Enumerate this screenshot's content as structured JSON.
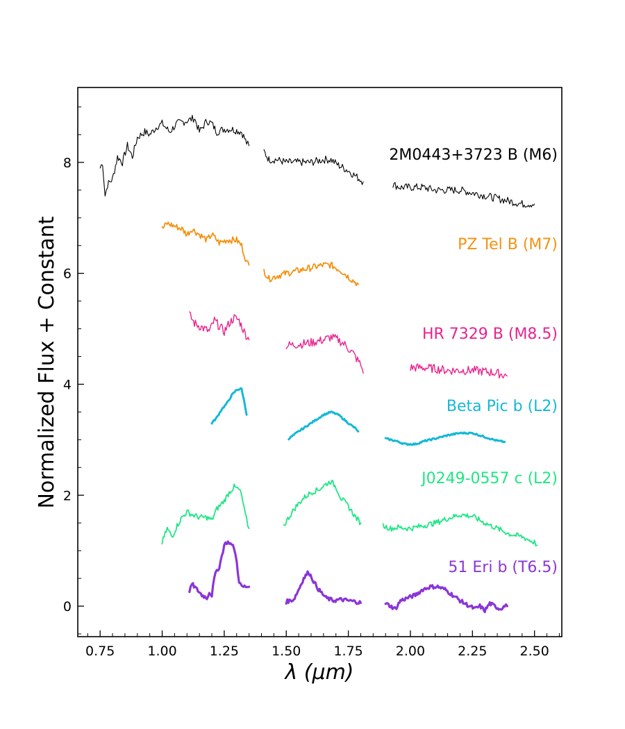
{
  "chart_data": {
    "type": "line",
    "title": "",
    "xlabel": "λ (μm)",
    "ylabel": "Normalized Flux + Constant",
    "xlim": [
      0.66,
      2.61
    ],
    "ylim": [
      -0.55,
      9.35
    ],
    "xticks": [
      0.75,
      1.0,
      1.25,
      1.5,
      1.75,
      2.0,
      2.25,
      2.5
    ],
    "xtick_labels": [
      "0.75",
      "1.00",
      "1.25",
      "1.50",
      "1.75",
      "2.00",
      "2.25",
      "2.50"
    ],
    "yticks": [
      0,
      2,
      4,
      6,
      8
    ],
    "ytick_labels": [
      "0",
      "2",
      "4",
      "6",
      "8"
    ],
    "grid": false,
    "legend": "none",
    "series": [
      {
        "name": "2M0443+3723 B (M6)",
        "color": "#000000",
        "width": 1.1,
        "noise": 0.07,
        "segments": [
          [
            [
              0.75,
              7.9
            ],
            [
              0.76,
              8.0
            ],
            [
              0.77,
              7.4
            ],
            [
              0.78,
              7.6
            ],
            [
              0.8,
              7.7
            ],
            [
              0.82,
              8.1
            ],
            [
              0.84,
              8.0
            ],
            [
              0.86,
              8.3
            ],
            [
              0.88,
              8.1
            ],
            [
              0.9,
              8.45
            ],
            [
              0.93,
              8.55
            ],
            [
              0.95,
              8.5
            ],
            [
              0.98,
              8.65
            ],
            [
              1.0,
              8.7
            ],
            [
              1.03,
              8.55
            ],
            [
              1.06,
              8.7
            ],
            [
              1.1,
              8.75
            ],
            [
              1.13,
              8.8
            ],
            [
              1.15,
              8.55
            ],
            [
              1.18,
              8.75
            ],
            [
              1.2,
              8.7
            ],
            [
              1.22,
              8.55
            ],
            [
              1.25,
              8.6
            ],
            [
              1.28,
              8.6
            ],
            [
              1.32,
              8.55
            ],
            [
              1.34,
              8.35
            ],
            [
              1.35,
              8.3
            ]
          ],
          [
            [
              1.41,
              8.2
            ],
            [
              1.43,
              8.05
            ],
            [
              1.46,
              8.05
            ],
            [
              1.5,
              8.0
            ],
            [
              1.55,
              8.0
            ],
            [
              1.6,
              8.0
            ],
            [
              1.65,
              8.05
            ],
            [
              1.68,
              8.05
            ],
            [
              1.71,
              7.95
            ],
            [
              1.75,
              7.85
            ],
            [
              1.78,
              7.75
            ],
            [
              1.81,
              7.65
            ]
          ],
          [
            [
              1.93,
              7.6
            ],
            [
              1.96,
              7.55
            ],
            [
              2.0,
              7.55
            ],
            [
              2.05,
              7.55
            ],
            [
              2.1,
              7.5
            ],
            [
              2.15,
              7.5
            ],
            [
              2.2,
              7.5
            ],
            [
              2.25,
              7.45
            ],
            [
              2.3,
              7.4
            ],
            [
              2.35,
              7.35
            ],
            [
              2.4,
              7.3
            ],
            [
              2.45,
              7.25
            ],
            [
              2.5,
              7.25
            ]
          ]
        ]
      },
      {
        "name": "PZ Tel B (M7)",
        "color": "#f39211",
        "width": 1.8,
        "noise": 0.06,
        "segments": [
          [
            [
              1.0,
              6.8
            ],
            [
              1.02,
              6.9
            ],
            [
              1.05,
              6.85
            ],
            [
              1.08,
              6.8
            ],
            [
              1.1,
              6.7
            ],
            [
              1.12,
              6.8
            ],
            [
              1.15,
              6.7
            ],
            [
              1.18,
              6.6
            ],
            [
              1.2,
              6.7
            ],
            [
              1.23,
              6.55
            ],
            [
              1.26,
              6.6
            ],
            [
              1.3,
              6.6
            ],
            [
              1.32,
              6.5
            ],
            [
              1.33,
              6.35
            ],
            [
              1.34,
              6.2
            ],
            [
              1.35,
              6.15
            ]
          ],
          [
            [
              1.41,
              6.05
            ],
            [
              1.43,
              5.9
            ],
            [
              1.46,
              5.95
            ],
            [
              1.5,
              6.0
            ],
            [
              1.55,
              6.05
            ],
            [
              1.6,
              6.1
            ],
            [
              1.65,
              6.15
            ],
            [
              1.68,
              6.15
            ],
            [
              1.72,
              6.05
            ],
            [
              1.76,
              5.9
            ],
            [
              1.79,
              5.8
            ]
          ]
        ]
      },
      {
        "name": "HR 7329 B (M8.5)",
        "color": "#e8238e",
        "width": 1.4,
        "noise": 0.08,
        "segments": [
          [
            [
              1.11,
              5.25
            ],
            [
              1.13,
              5.1
            ],
            [
              1.15,
              5.05
            ],
            [
              1.17,
              5.0
            ],
            [
              1.19,
              4.95
            ],
            [
              1.21,
              5.15
            ],
            [
              1.23,
              5.05
            ],
            [
              1.25,
              4.95
            ],
            [
              1.27,
              5.1
            ],
            [
              1.29,
              5.2
            ],
            [
              1.31,
              5.15
            ],
            [
              1.33,
              4.95
            ],
            [
              1.35,
              4.8
            ]
          ],
          [
            [
              1.5,
              4.7
            ],
            [
              1.55,
              4.72
            ],
            [
              1.6,
              4.75
            ],
            [
              1.65,
              4.8
            ],
            [
              1.68,
              4.85
            ],
            [
              1.71,
              4.8
            ],
            [
              1.74,
              4.7
            ],
            [
              1.77,
              4.55
            ],
            [
              1.8,
              4.35
            ],
            [
              1.81,
              4.2
            ]
          ],
          [
            [
              2.0,
              4.3
            ],
            [
              2.05,
              4.3
            ],
            [
              2.1,
              4.28
            ],
            [
              2.15,
              4.25
            ],
            [
              2.2,
              4.25
            ],
            [
              2.25,
              4.25
            ],
            [
              2.3,
              4.23
            ],
            [
              2.35,
              4.2
            ],
            [
              2.39,
              4.15
            ]
          ]
        ]
      },
      {
        "name": "Beta Pic b (L2)",
        "color": "#14b8d6",
        "width": 3.0,
        "noise": 0.015,
        "segments": [
          [
            [
              1.2,
              3.3
            ],
            [
              1.22,
              3.4
            ],
            [
              1.24,
              3.55
            ],
            [
              1.26,
              3.65
            ],
            [
              1.28,
              3.8
            ],
            [
              1.3,
              3.9
            ],
            [
              1.32,
              3.92
            ],
            [
              1.33,
              3.7
            ],
            [
              1.34,
              3.45
            ]
          ],
          [
            [
              1.51,
              3.02
            ],
            [
              1.55,
              3.15
            ],
            [
              1.6,
              3.3
            ],
            [
              1.65,
              3.45
            ],
            [
              1.68,
              3.5
            ],
            [
              1.71,
              3.45
            ],
            [
              1.75,
              3.3
            ],
            [
              1.78,
              3.2
            ],
            [
              1.79,
              3.15
            ]
          ],
          [
            [
              1.9,
              3.02
            ],
            [
              1.94,
              2.98
            ],
            [
              1.98,
              2.92
            ],
            [
              2.02,
              2.92
            ],
            [
              2.06,
              2.98
            ],
            [
              2.1,
              3.02
            ],
            [
              2.15,
              3.08
            ],
            [
              2.2,
              3.12
            ],
            [
              2.25,
              3.12
            ],
            [
              2.3,
              3.05
            ],
            [
              2.35,
              2.98
            ],
            [
              2.38,
              2.96
            ]
          ]
        ]
      },
      {
        "name": "J0249-0557 c (L2)",
        "color": "#1fe684",
        "width": 1.8,
        "noise": 0.05,
        "segments": [
          [
            [
              1.0,
              1.15
            ],
            [
              1.02,
              1.4
            ],
            [
              1.04,
              1.25
            ],
            [
              1.06,
              1.45
            ],
            [
              1.08,
              1.6
            ],
            [
              1.1,
              1.7
            ],
            [
              1.12,
              1.65
            ],
            [
              1.15,
              1.6
            ],
            [
              1.18,
              1.6
            ],
            [
              1.2,
              1.55
            ],
            [
              1.22,
              1.75
            ],
            [
              1.25,
              1.9
            ],
            [
              1.27,
              2.05
            ],
            [
              1.29,
              2.15
            ],
            [
              1.31,
              2.1
            ],
            [
              1.32,
              2.0
            ],
            [
              1.33,
              1.75
            ],
            [
              1.34,
              1.55
            ],
            [
              1.35,
              1.4
            ]
          ],
          [
            [
              1.49,
              1.45
            ],
            [
              1.51,
              1.6
            ],
            [
              1.54,
              1.8
            ],
            [
              1.57,
              1.95
            ],
            [
              1.6,
              2.05
            ],
            [
              1.63,
              2.1
            ],
            [
              1.66,
              2.2
            ],
            [
              1.68,
              2.25
            ],
            [
              1.7,
              2.15
            ],
            [
              1.72,
              1.95
            ],
            [
              1.75,
              1.8
            ],
            [
              1.78,
              1.6
            ],
            [
              1.8,
              1.5
            ]
          ],
          [
            [
              1.89,
              1.45
            ],
            [
              1.92,
              1.4
            ],
            [
              1.95,
              1.42
            ],
            [
              2.0,
              1.4
            ],
            [
              2.05,
              1.45
            ],
            [
              2.1,
              1.5
            ],
            [
              2.15,
              1.58
            ],
            [
              2.2,
              1.65
            ],
            [
              2.25,
              1.62
            ],
            [
              2.3,
              1.5
            ],
            [
              2.35,
              1.4
            ],
            [
              2.4,
              1.3
            ],
            [
              2.45,
              1.25
            ],
            [
              2.5,
              1.15
            ],
            [
              2.51,
              1.1
            ]
          ]
        ]
      },
      {
        "name": "51 Eri b (T6.5)",
        "color": "#8a35d8",
        "width": 3.2,
        "noise": 0.035,
        "segments": [
          [
            [
              1.11,
              0.25
            ],
            [
              1.12,
              0.4
            ],
            [
              1.14,
              0.3
            ],
            [
              1.16,
              0.2
            ],
            [
              1.18,
              0.15
            ],
            [
              1.19,
              0.25
            ],
            [
              1.2,
              0.2
            ],
            [
              1.21,
              0.5
            ],
            [
              1.22,
              0.65
            ],
            [
              1.23,
              0.7
            ],
            [
              1.24,
              0.9
            ],
            [
              1.25,
              1.1
            ],
            [
              1.26,
              1.15
            ],
            [
              1.27,
              1.15
            ],
            [
              1.28,
              1.1
            ],
            [
              1.29,
              1.05
            ],
            [
              1.3,
              0.8
            ],
            [
              1.31,
              0.45
            ],
            [
              1.32,
              0.35
            ],
            [
              1.34,
              0.35
            ],
            [
              1.35,
              0.35
            ]
          ],
          [
            [
              1.5,
              0.08
            ],
            [
              1.53,
              0.12
            ],
            [
              1.55,
              0.3
            ],
            [
              1.57,
              0.5
            ],
            [
              1.59,
              0.62
            ],
            [
              1.61,
              0.45
            ],
            [
              1.63,
              0.3
            ],
            [
              1.66,
              0.15
            ],
            [
              1.69,
              0.1
            ],
            [
              1.72,
              0.12
            ],
            [
              1.75,
              0.1
            ],
            [
              1.78,
              0.08
            ],
            [
              1.8,
              0.06
            ]
          ],
          [
            [
              1.9,
              0.05
            ],
            [
              1.92,
              0.0
            ],
            [
              1.94,
              -0.05
            ],
            [
              1.96,
              0.1
            ],
            [
              1.99,
              0.15
            ],
            [
              2.02,
              0.2
            ],
            [
              2.05,
              0.3
            ],
            [
              2.08,
              0.35
            ],
            [
              2.11,
              0.35
            ],
            [
              2.14,
              0.3
            ],
            [
              2.17,
              0.2
            ],
            [
              2.2,
              0.1
            ],
            [
              2.23,
              0.02
            ],
            [
              2.26,
              -0.05
            ],
            [
              2.28,
              0.0
            ],
            [
              2.3,
              -0.08
            ],
            [
              2.32,
              0.05
            ],
            [
              2.34,
              0.0
            ],
            [
              2.36,
              -0.05
            ],
            [
              2.38,
              0.0
            ],
            [
              2.39,
              0.0
            ]
          ]
        ]
      }
    ]
  }
}
